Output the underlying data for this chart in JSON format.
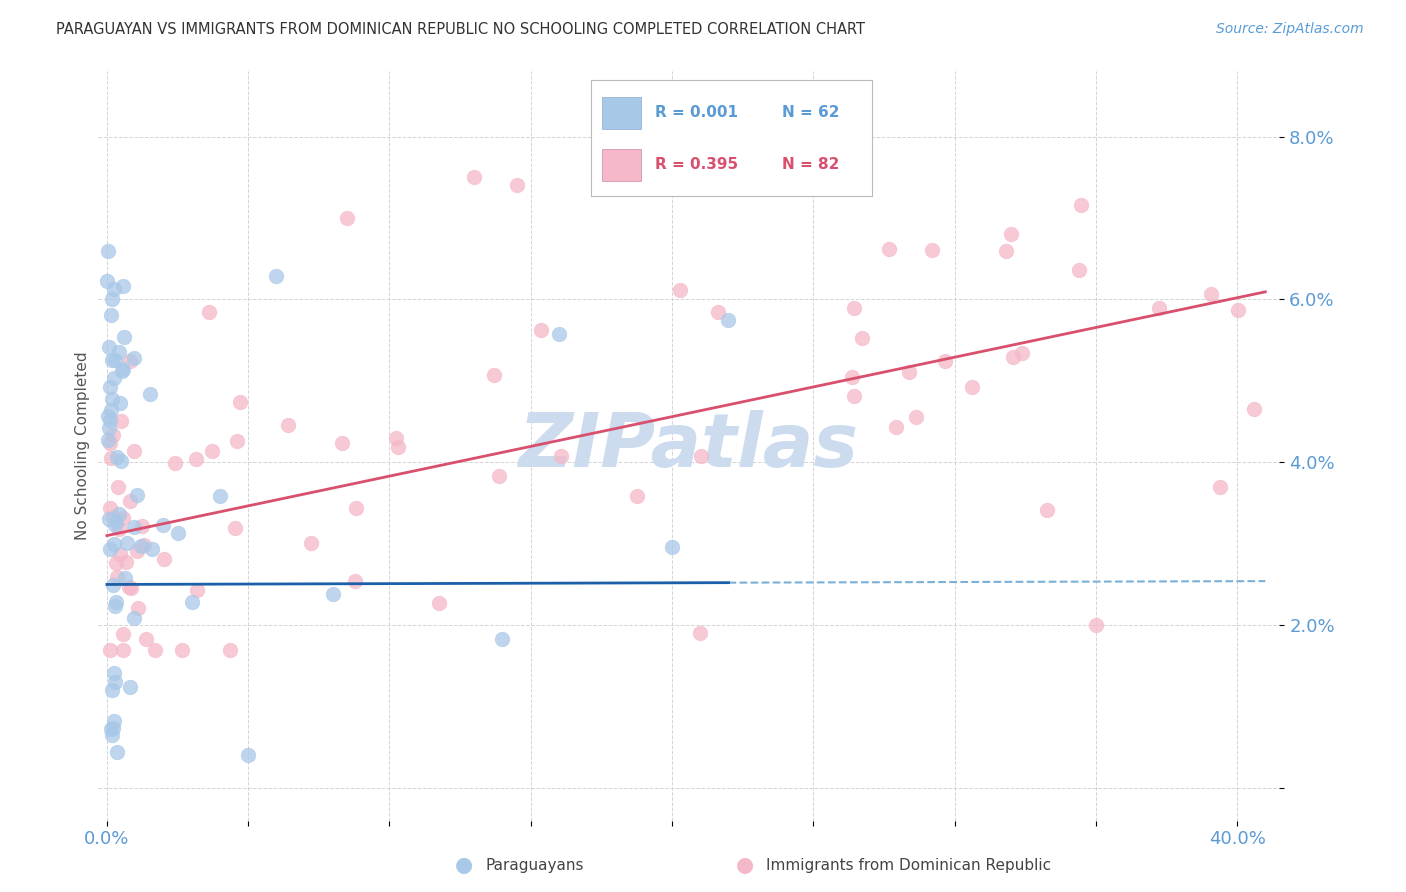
{
  "title": "PARAGUAYAN VS IMMIGRANTS FROM DOMINICAN REPUBLIC NO SCHOOLING COMPLETED CORRELATION CHART",
  "source": "Source: ZipAtlas.com",
  "ylabel": "No Schooling Completed",
  "xlim": [
    -0.003,
    0.415
  ],
  "ylim": [
    -0.004,
    0.088
  ],
  "y_ticks": [
    0.0,
    0.02,
    0.04,
    0.06,
    0.08
  ],
  "y_tick_labels": [
    "",
    "2.0%",
    "4.0%",
    "6.0%",
    "8.0%"
  ],
  "x_ticks": [
    0.0,
    0.05,
    0.1,
    0.15,
    0.2,
    0.25,
    0.3,
    0.35,
    0.4
  ],
  "x_tick_labels": [
    "0.0%",
    "",
    "",
    "",
    "",
    "",
    "",
    "",
    "40.0%"
  ],
  "blue_scatter_color": "#a8c8e8",
  "pink_scatter_color": "#f4b8c8",
  "blue_line_color": "#1a5fa8",
  "pink_line_color": "#d94f6e",
  "blue_dash_color": "#7ab0d8",
  "axis_tick_color": "#5b9bd5",
  "title_color": "#333333",
  "source_color": "#5b9bd5",
  "grid_color": "#d0d0d0",
  "watermark_color": "#ccdcee",
  "watermark": "ZIPatlas",
  "legend_label_blue": "Paraguayans",
  "legend_label_pink": "Immigrants from Dominican Republic",
  "background_color": "#ffffff",
  "blue_intercept": 0.025,
  "blue_slope": 0.001,
  "pink_intercept": 0.031,
  "pink_slope": 0.073
}
